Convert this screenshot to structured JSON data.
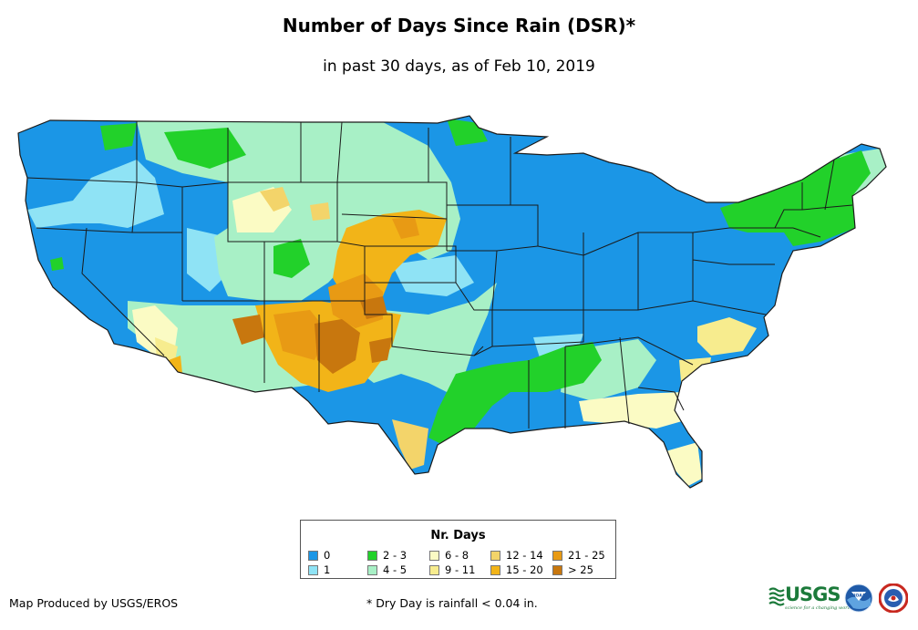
{
  "title": "Number of Days Since Rain (DSR)*",
  "subtitle": "in past 30 days, as of Feb 10, 2019",
  "legend": {
    "title": "Nr. Days",
    "items": [
      {
        "label": "0",
        "color": "#1b96e6"
      },
      {
        "label": "1",
        "color": "#8fe3f5"
      },
      {
        "label": "2 - 3",
        "color": "#22d12a"
      },
      {
        "label": "4 - 5",
        "color": "#a8f0c6"
      },
      {
        "label": "6 - 8",
        "color": "#fbfbc4"
      },
      {
        "label": "9 - 11",
        "color": "#f7ec8e"
      },
      {
        "label": "12 - 14",
        "color": "#f3d46a"
      },
      {
        "label": "15 - 20",
        "color": "#f2b418"
      },
      {
        "label": "21 - 25",
        "color": "#e89a14"
      },
      {
        "label": "> 25",
        "color": "#c8770e"
      }
    ]
  },
  "credit": "Map Produced by USGS/EROS",
  "footnote": "* Dry Day is rainfall < 0.04 in.",
  "logos": {
    "usgs_text": "USGS",
    "usgs_tagline": "science for a changing world",
    "noaa_text": "NOAA"
  },
  "colors": {
    "state_border": "#1a1a1a"
  }
}
